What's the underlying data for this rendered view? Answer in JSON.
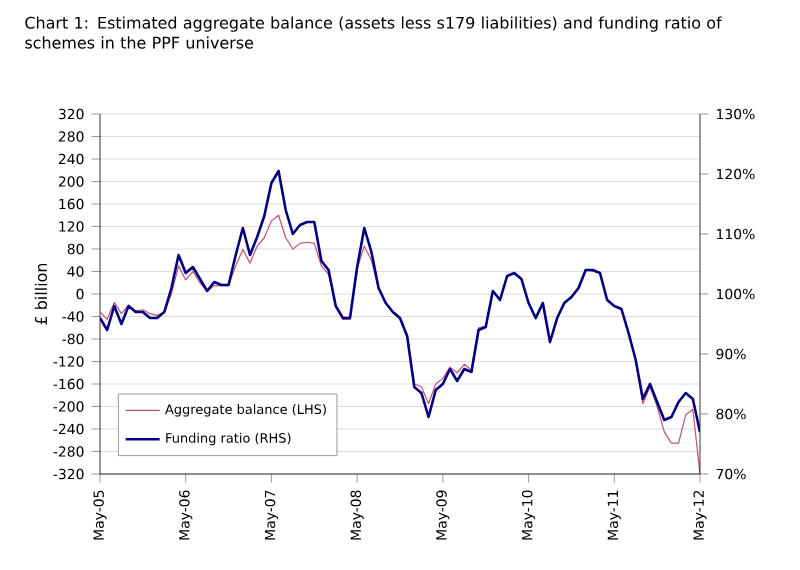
{
  "chart_data": {
    "type": "line",
    "title": "Chart 1: Estimated aggregate balance (assets less s179 liabilities) and funding ratio of schemes in the PPF universe",
    "ylabel": "£ billion",
    "x": [
      "2005-05",
      "2005-06",
      "2005-07",
      "2005-08",
      "2005-09",
      "2005-10",
      "2005-11",
      "2005-12",
      "2006-01",
      "2006-02",
      "2006-03",
      "2006-04",
      "2006-05",
      "2006-06",
      "2006-07",
      "2006-08",
      "2006-09",
      "2006-10",
      "2006-11",
      "2006-12",
      "2007-01",
      "2007-02",
      "2007-03",
      "2007-04",
      "2007-05",
      "2007-06",
      "2007-07",
      "2007-08",
      "2007-09",
      "2007-10",
      "2007-11",
      "2007-12",
      "2008-01",
      "2008-02",
      "2008-03",
      "2008-04",
      "2008-05",
      "2008-06",
      "2008-07",
      "2008-08",
      "2008-09",
      "2008-10",
      "2008-11",
      "2008-12",
      "2009-01",
      "2009-02",
      "2009-03",
      "2009-04",
      "2009-05",
      "2009-06",
      "2009-07",
      "2009-08",
      "2009-09",
      "2009-10",
      "2009-11",
      "2009-12",
      "2010-01",
      "2010-02",
      "2010-03",
      "2010-04",
      "2010-05",
      "2010-06",
      "2010-07",
      "2010-08",
      "2010-09",
      "2010-10",
      "2010-11",
      "2010-12",
      "2011-01",
      "2011-02",
      "2011-03",
      "2011-04",
      "2011-05",
      "2011-06",
      "2011-07",
      "2011-08",
      "2011-09",
      "2011-10",
      "2011-11",
      "2011-12",
      "2012-01",
      "2012-02",
      "2012-03",
      "2012-04",
      "2012-05"
    ],
    "series": [
      {
        "name": "Aggregate balance (LHS)",
        "color": "#c0507a",
        "values": [
          -32,
          -45,
          -15,
          -35,
          -20,
          -30,
          -28,
          -35,
          -38,
          -33,
          0,
          50,
          25,
          40,
          20,
          5,
          15,
          15,
          15,
          50,
          79,
          55,
          85,
          100,
          130,
          140,
          100,
          80,
          90,
          92,
          90,
          50,
          35,
          -20,
          -45,
          -45,
          45,
          85,
          60,
          10,
          -15,
          -33,
          -45,
          -75,
          -160,
          -165,
          -195,
          -160,
          -150,
          -130,
          -140,
          -125,
          -135,
          -60,
          -57,
          6,
          -9,
          30,
          38,
          26,
          -15,
          -45,
          -18,
          -87,
          -45,
          -15,
          -7,
          11,
          44,
          40,
          38,
          -9,
          -21,
          -25,
          -69,
          -116,
          -195,
          -165,
          -200,
          -245,
          -265,
          -265,
          -215,
          -205,
          -320
        ]
      },
      {
        "name": "Funding ratio (RHS)",
        "color": "#000080",
        "axis": "y2",
        "values": [
          96,
          94,
          98,
          95,
          98,
          97,
          97,
          96,
          96,
          97,
          101,
          106.5,
          103.5,
          104.5,
          102.5,
          100.5,
          102,
          101.5,
          101.5,
          106.5,
          111,
          106.5,
          109.5,
          113,
          118.5,
          120.5,
          114,
          110,
          111.5,
          112,
          112,
          105.5,
          104,
          98,
          96,
          96,
          104.5,
          111,
          107,
          101,
          98.5,
          97,
          96,
          93,
          84.5,
          83.5,
          79.5,
          84,
          85,
          87.5,
          85.5,
          87.5,
          87,
          94,
          94.5,
          100.5,
          99,
          103,
          103.5,
          102.5,
          98.5,
          96,
          98.5,
          92,
          96,
          98.5,
          99.5,
          101,
          104,
          104,
          103.5,
          99,
          98,
          97.5,
          93.5,
          89,
          82.5,
          85,
          82,
          79,
          79.5,
          82,
          83.5,
          82.5,
          77
        ]
      }
    ],
    "xlim": [
      "2005-05",
      "2012-05"
    ],
    "xticks": [
      {
        "value": "2005-05",
        "label": "May-05"
      },
      {
        "value": "2006-05",
        "label": "May-06"
      },
      {
        "value": "2007-05",
        "label": "May-07"
      },
      {
        "value": "2008-05",
        "label": "May-08"
      },
      {
        "value": "2009-05",
        "label": "May-09"
      },
      {
        "value": "2010-05",
        "label": "May-10"
      },
      {
        "value": "2011-05",
        "label": "May-11"
      },
      {
        "value": "2012-05",
        "label": "May-12"
      }
    ],
    "ylim": [
      -320,
      320
    ],
    "yticks": [
      -320,
      -280,
      -240,
      -200,
      -160,
      -120,
      -80,
      -40,
      0,
      40,
      80,
      120,
      160,
      200,
      240,
      280,
      320
    ],
    "y2lim": [
      70,
      130
    ],
    "y2ticks": [
      {
        "value": 70,
        "label": "70%"
      },
      {
        "value": 80,
        "label": "80%"
      },
      {
        "value": 90,
        "label": "90%"
      },
      {
        "value": 100,
        "label": "100%"
      },
      {
        "value": 110,
        "label": "110%"
      },
      {
        "value": 120,
        "label": "120%"
      },
      {
        "value": 130,
        "label": "130%"
      }
    ],
    "grid": "y",
    "legend": "bottom left",
    "marker": "none",
    "line_style": "solid"
  }
}
